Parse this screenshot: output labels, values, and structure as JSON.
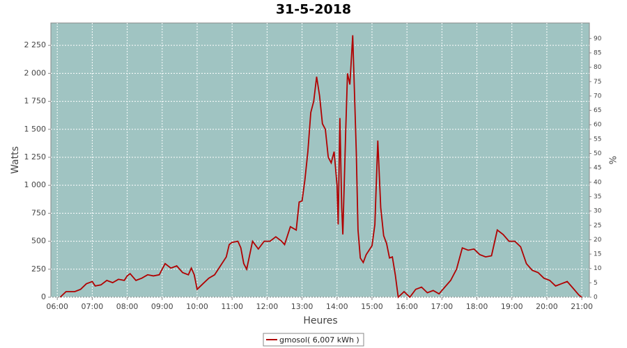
{
  "chart_data": {
    "type": "line",
    "title": "31-5-2018",
    "xlabel": "Heures",
    "ylabel": "Watts",
    "y2label": "%",
    "x": [
      "06:05",
      "06:15",
      "06:30",
      "06:40",
      "06:50",
      "07:00",
      "07:05",
      "07:15",
      "07:25",
      "07:35",
      "07:45",
      "07:55",
      "08:00",
      "08:05",
      "08:15",
      "08:25",
      "08:35",
      "08:45",
      "08:55",
      "09:00",
      "09:05",
      "09:15",
      "09:25",
      "09:35",
      "09:45",
      "09:50",
      "09:55",
      "10:00",
      "10:10",
      "10:20",
      "10:30",
      "10:40",
      "10:50",
      "10:55",
      "11:00",
      "11:10",
      "11:15",
      "11:20",
      "11:25",
      "11:35",
      "11:45",
      "11:55",
      "12:05",
      "12:15",
      "12:25",
      "12:30",
      "12:40",
      "12:50",
      "12:55",
      "13:00",
      "13:05",
      "13:10",
      "13:15",
      "13:20",
      "13:25",
      "13:30",
      "13:35",
      "13:40",
      "13:45",
      "13:50",
      "13:55",
      "14:00",
      "14:02",
      "14:05",
      "14:08",
      "14:10",
      "14:15",
      "14:18",
      "14:22",
      "14:27",
      "14:33",
      "14:36",
      "14:40",
      "14:45",
      "14:50",
      "15:00",
      "15:05",
      "15:10",
      "15:15",
      "15:20",
      "15:25",
      "15:30",
      "15:35",
      "15:40",
      "15:45",
      "15:55",
      "16:05",
      "16:15",
      "16:25",
      "16:35",
      "16:45",
      "16:55",
      "17:05",
      "17:15",
      "17:25",
      "17:35",
      "17:45",
      "17:55",
      "18:05",
      "18:15",
      "18:25",
      "18:35",
      "18:45",
      "18:55",
      "19:05",
      "19:15",
      "19:25",
      "19:35",
      "19:45",
      "19:55",
      "20:05",
      "20:15",
      "20:25",
      "20:35",
      "20:45",
      "20:55",
      "21:00"
    ],
    "series": [
      {
        "name": "gmosol( 6,007 kWh )",
        "color": "#b00000",
        "values": [
          0,
          50,
          50,
          70,
          120,
          140,
          100,
          110,
          150,
          130,
          160,
          150,
          190,
          210,
          150,
          170,
          200,
          190,
          200,
          250,
          300,
          260,
          280,
          220,
          200,
          260,
          200,
          70,
          120,
          170,
          200,
          280,
          360,
          470,
          490,
          500,
          440,
          300,
          250,
          500,
          430,
          500,
          500,
          540,
          500,
          470,
          630,
          600,
          850,
          860,
          1050,
          1300,
          1650,
          1750,
          1970,
          1800,
          1550,
          1500,
          1250,
          1200,
          1300,
          1000,
          650,
          1600,
          800,
          560,
          1500,
          2000,
          1900,
          2340,
          1300,
          600,
          350,
          310,
          380,
          460,
          650,
          1400,
          800,
          550,
          480,
          350,
          360,
          200,
          0,
          50,
          0,
          70,
          90,
          40,
          60,
          30,
          90,
          150,
          250,
          440,
          420,
          430,
          380,
          360,
          370,
          600,
          560,
          500,
          500,
          450,
          300,
          240,
          220,
          170,
          150,
          100,
          120,
          140,
          80,
          20,
          0
        ]
      }
    ],
    "xlim": [
      "05:49",
      "21:13"
    ],
    "xticks": [
      "06:00",
      "07:00",
      "08:00",
      "09:00",
      "10:00",
      "11:00",
      "12:00",
      "13:00",
      "14:00",
      "15:00",
      "16:00",
      "17:00",
      "18:00",
      "19:00",
      "20:00",
      "21:00"
    ],
    "ylim": [
      0,
      2450
    ],
    "yticks": [
      0,
      250,
      500,
      750,
      {
        "value": 1000,
        "label": "1 000"
      },
      {
        "value": 1250,
        "label": "1 250"
      },
      {
        "value": 1500,
        "label": "1 500"
      },
      {
        "value": 1750,
        "label": "1 750"
      },
      {
        "value": 2000,
        "label": "2 000"
      },
      {
        "value": 2250,
        "label": "2 250"
      }
    ],
    "y2lim": [
      0,
      95.4
    ],
    "y2ticks": [
      0,
      5,
      10,
      15,
      20,
      25,
      30,
      35,
      40,
      45,
      50,
      55,
      60,
      65,
      70,
      75,
      80,
      85,
      90
    ],
    "grid": true,
    "background": "#a0c4c2"
  }
}
